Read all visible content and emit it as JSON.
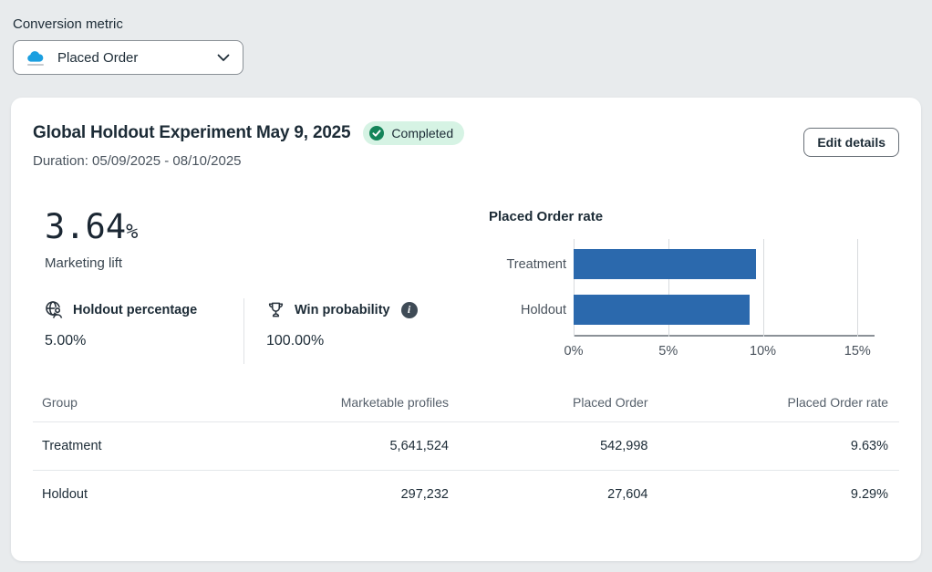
{
  "conversion_metric": {
    "label": "Conversion metric",
    "selected": "Placed Order",
    "icon": "cloud-metric-icon"
  },
  "card": {
    "title": "Global Holdout Experiment May 9, 2025",
    "status_badge": "Completed",
    "duration": "Duration: 05/09/2025 - 08/10/2025",
    "edit_button": "Edit details"
  },
  "lift": {
    "value": "3.64",
    "unit": "%",
    "label": "Marketing lift"
  },
  "stats": [
    {
      "label": "Holdout percentage",
      "value": "5.00%",
      "icon": "globe-person-icon"
    },
    {
      "label": "Win probability",
      "value": "100.00%",
      "icon": "trophy-icon",
      "info": "i"
    }
  ],
  "chart_data": {
    "type": "bar",
    "orientation": "horizontal",
    "title": "Placed Order rate",
    "categories": [
      "Treatment",
      "Holdout"
    ],
    "values": [
      9.63,
      9.29
    ],
    "value_unit": "%",
    "xticks": [
      0,
      5,
      10,
      15
    ],
    "xtick_labels": [
      "0%",
      "5%",
      "10%",
      "15%"
    ],
    "xlim": [
      0,
      15.9
    ],
    "grid": true,
    "legend": false,
    "bar_color": "#2b69ad"
  },
  "table": {
    "headers": [
      "Group",
      "Marketable profiles",
      "Placed Order",
      "Placed Order rate"
    ],
    "rows": [
      {
        "cells": [
          "Treatment",
          "5,641,524",
          "542,998",
          "9.63%"
        ]
      },
      {
        "cells": [
          "Holdout",
          "297,232",
          "27,604",
          "9.29%"
        ]
      }
    ]
  },
  "colors": {
    "accent_blue": "#2b69ad",
    "badge_bg": "#d6f3e4",
    "badge_check": "#148459",
    "page_bg": "#e8ebed"
  }
}
